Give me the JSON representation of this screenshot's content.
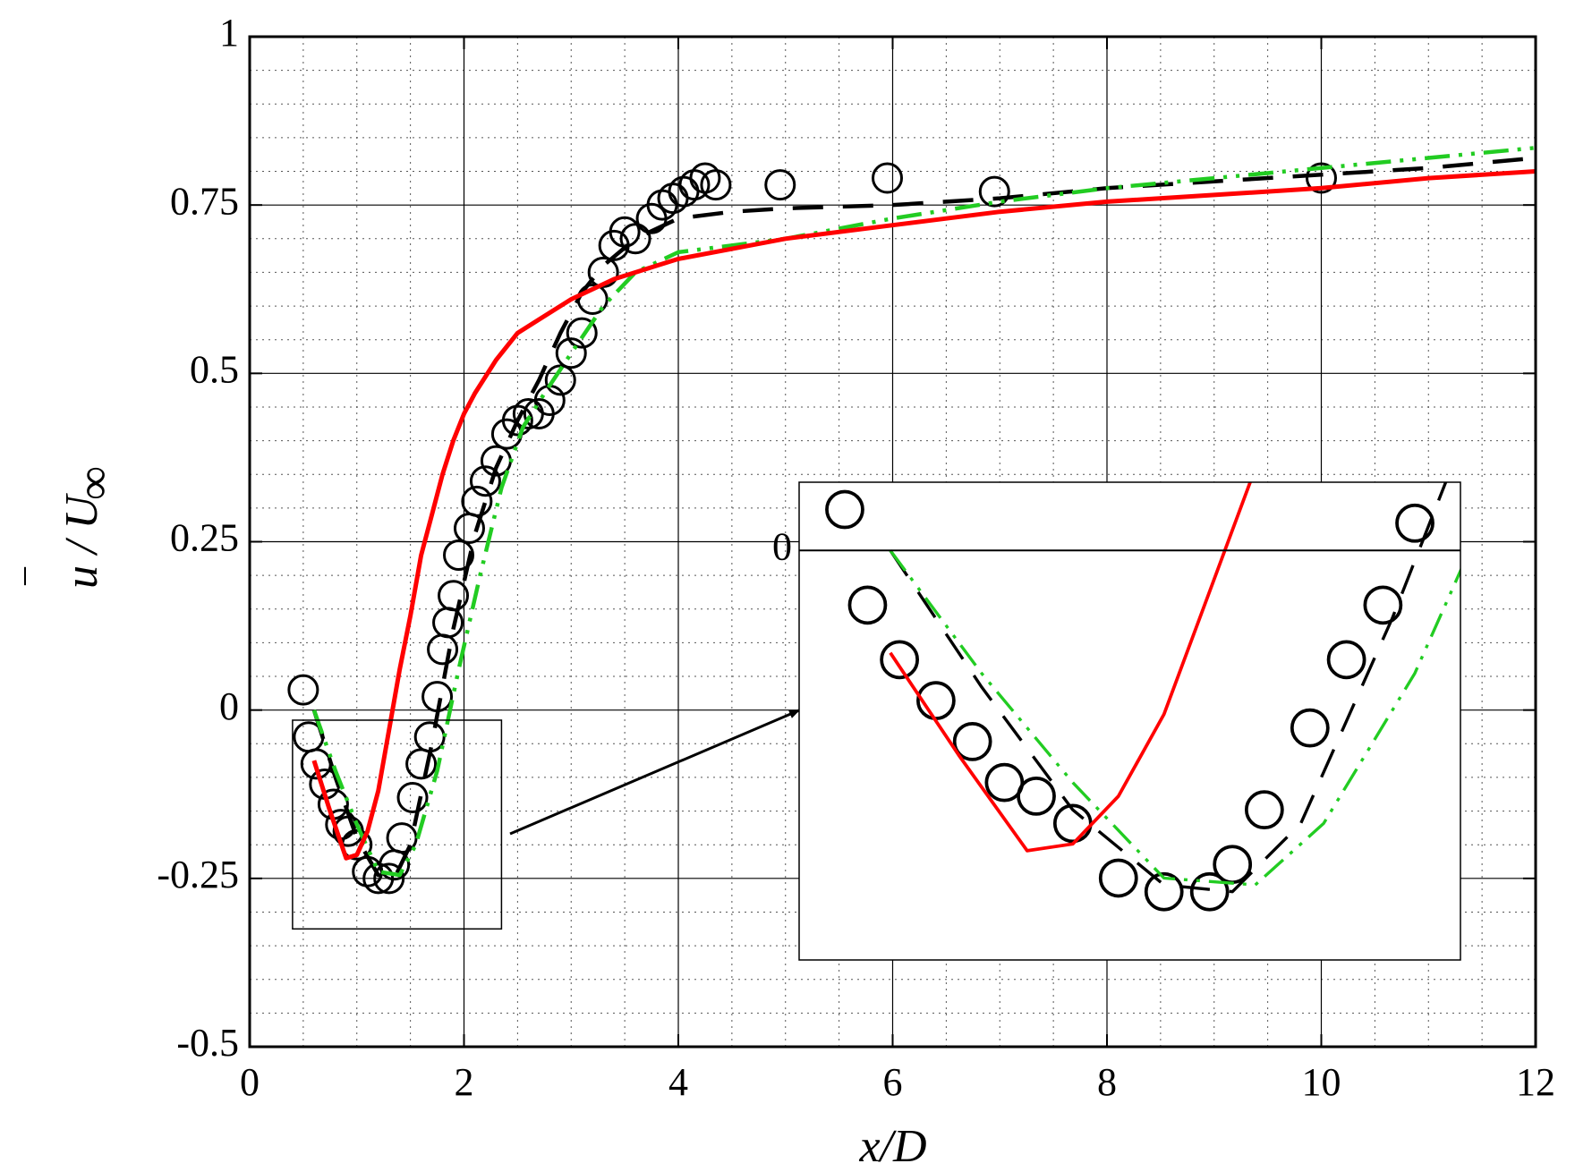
{
  "chart_data": {
    "type": "line",
    "xlabel": "x/D",
    "ylabel": "u / U",
    "ylabel_bar": "‾",
    "ylabel_sub": "∞",
    "xlim": [
      0,
      12
    ],
    "ylim": [
      -0.5,
      1
    ],
    "xticks": [
      0,
      2,
      4,
      6,
      8,
      10,
      12
    ],
    "xtick_labels": [
      "0",
      "2",
      "4",
      "6",
      "8",
      "10",
      "12"
    ],
    "yticks": [
      -0.5,
      -0.25,
      0,
      0.25,
      0.5,
      0.75,
      1
    ],
    "ytick_labels": [
      "-0.5",
      "-0.25",
      "0",
      "0.25",
      "0.5",
      "0.75",
      "1"
    ],
    "grid": true,
    "series": [
      {
        "style": "circles",
        "color": "#000000",
        "points": [
          [
            0.5,
            0.03
          ],
          [
            0.55,
            -0.04
          ],
          [
            0.62,
            -0.08
          ],
          [
            0.7,
            -0.11
          ],
          [
            0.78,
            -0.14
          ],
          [
            0.85,
            -0.17
          ],
          [
            0.92,
            -0.18
          ],
          [
            1.0,
            -0.2
          ],
          [
            1.1,
            -0.24
          ],
          [
            1.2,
            -0.25
          ],
          [
            1.3,
            -0.25
          ],
          [
            1.35,
            -0.23
          ],
          [
            1.42,
            -0.19
          ],
          [
            1.52,
            -0.13
          ],
          [
            1.6,
            -0.08
          ],
          [
            1.68,
            -0.04
          ],
          [
            1.75,
            0.02
          ],
          [
            1.8,
            0.09
          ],
          [
            1.85,
            0.13
          ],
          [
            1.9,
            0.17
          ],
          [
            1.95,
            0.23
          ],
          [
            2.05,
            0.27
          ],
          [
            2.12,
            0.31
          ],
          [
            2.2,
            0.34
          ],
          [
            2.3,
            0.37
          ],
          [
            2.4,
            0.41
          ],
          [
            2.5,
            0.43
          ],
          [
            2.6,
            0.44
          ],
          [
            2.7,
            0.44
          ],
          [
            2.8,
            0.46
          ],
          [
            2.9,
            0.49
          ],
          [
            3.0,
            0.53
          ],
          [
            3.1,
            0.56
          ],
          [
            3.2,
            0.61
          ],
          [
            3.3,
            0.65
          ],
          [
            3.4,
            0.69
          ],
          [
            3.5,
            0.71
          ],
          [
            3.6,
            0.7
          ],
          [
            3.75,
            0.73
          ],
          [
            3.85,
            0.75
          ],
          [
            3.95,
            0.76
          ],
          [
            4.05,
            0.77
          ],
          [
            4.15,
            0.78
          ],
          [
            4.25,
            0.79
          ],
          [
            4.35,
            0.78
          ],
          [
            4.95,
            0.78
          ],
          [
            5.95,
            0.79
          ],
          [
            6.95,
            0.77
          ],
          [
            10.0,
            0.79
          ]
        ]
      },
      {
        "style": "dashed",
        "color": "#000000",
        "points": [
          [
            0.6,
            0.0
          ],
          [
            0.8,
            -0.1
          ],
          [
            1.0,
            -0.19
          ],
          [
            1.2,
            -0.245
          ],
          [
            1.35,
            -0.25
          ],
          [
            1.5,
            -0.2
          ],
          [
            1.7,
            -0.05
          ],
          [
            1.9,
            0.12
          ],
          [
            2.1,
            0.26
          ],
          [
            2.3,
            0.36
          ],
          [
            2.5,
            0.43
          ],
          [
            2.7,
            0.49
          ],
          [
            2.9,
            0.56
          ],
          [
            3.1,
            0.62
          ],
          [
            3.3,
            0.66
          ],
          [
            3.6,
            0.7
          ],
          [
            4.0,
            0.73
          ],
          [
            4.5,
            0.74
          ],
          [
            5.0,
            0.745
          ],
          [
            6.0,
            0.75
          ],
          [
            7.0,
            0.76
          ],
          [
            8.0,
            0.775
          ],
          [
            9.0,
            0.785
          ],
          [
            10.0,
            0.795
          ],
          [
            11.0,
            0.805
          ],
          [
            12.0,
            0.82
          ]
        ]
      },
      {
        "style": "dash-dot-dot",
        "color": "#22cc22",
        "points": [
          [
            0.6,
            0.0
          ],
          [
            0.8,
            -0.09
          ],
          [
            1.0,
            -0.17
          ],
          [
            1.2,
            -0.24
          ],
          [
            1.4,
            -0.245
          ],
          [
            1.55,
            -0.2
          ],
          [
            1.75,
            -0.09
          ],
          [
            1.95,
            0.06
          ],
          [
            2.15,
            0.2
          ],
          [
            2.35,
            0.33
          ],
          [
            2.55,
            0.42
          ],
          [
            2.75,
            0.47
          ],
          [
            3.0,
            0.53
          ],
          [
            3.3,
            0.6
          ],
          [
            3.6,
            0.65
          ],
          [
            4.0,
            0.68
          ],
          [
            4.5,
            0.69
          ],
          [
            5.0,
            0.7
          ],
          [
            6.0,
            0.73
          ],
          [
            7.0,
            0.755
          ],
          [
            8.0,
            0.775
          ],
          [
            9.0,
            0.79
          ],
          [
            10.0,
            0.805
          ],
          [
            11.0,
            0.82
          ],
          [
            12.0,
            0.835
          ]
        ]
      },
      {
        "style": "solid",
        "color": "#ff0000",
        "points": [
          [
            0.6,
            -0.075
          ],
          [
            0.75,
            -0.15
          ],
          [
            0.9,
            -0.22
          ],
          [
            1.0,
            -0.215
          ],
          [
            1.1,
            -0.18
          ],
          [
            1.2,
            -0.12
          ],
          [
            1.3,
            -0.03
          ],
          [
            1.4,
            0.06
          ],
          [
            1.5,
            0.14
          ],
          [
            1.6,
            0.23
          ],
          [
            1.7,
            0.29
          ],
          [
            1.8,
            0.35
          ],
          [
            1.9,
            0.4
          ],
          [
            2.0,
            0.44
          ],
          [
            2.1,
            0.47
          ],
          [
            2.3,
            0.52
          ],
          [
            2.5,
            0.56
          ],
          [
            2.7,
            0.58
          ],
          [
            3.0,
            0.61
          ],
          [
            3.4,
            0.64
          ],
          [
            3.8,
            0.66
          ],
          [
            4.0,
            0.67
          ],
          [
            5.0,
            0.7
          ],
          [
            6.0,
            0.72
          ],
          [
            7.0,
            0.74
          ],
          [
            8.0,
            0.755
          ],
          [
            9.0,
            0.765
          ],
          [
            10.0,
            0.775
          ],
          [
            11.0,
            0.79
          ],
          [
            12.0,
            0.8
          ]
        ]
      }
    ],
    "inset": {
      "source_xlim": [
        0.4,
        2.35
      ],
      "source_ylim": [
        -0.325,
        -0.015
      ],
      "xlim": [
        0.4,
        1.85
      ],
      "ylim": [
        -0.3,
        0.05
      ],
      "zero_label": "0",
      "arrow": true
    }
  }
}
